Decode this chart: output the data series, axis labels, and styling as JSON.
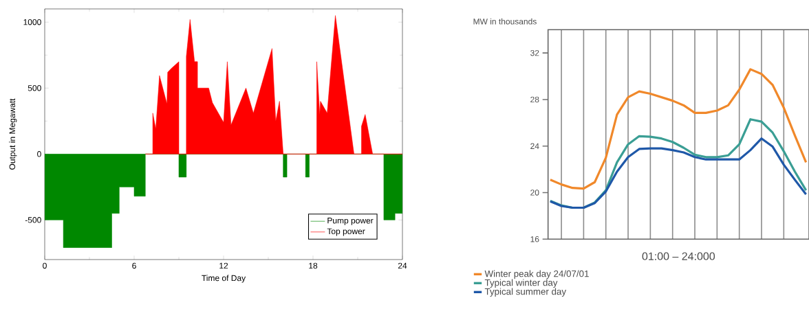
{
  "chart_data": [
    {
      "type": "area",
      "xlabel": "Time of Day",
      "ylabel": "Output in Megawatt",
      "xlim": [
        0,
        24
      ],
      "ylim": [
        -800,
        1100
      ],
      "xticks": [
        0,
        6,
        12,
        18,
        24
      ],
      "yticks": [
        -500,
        0,
        500,
        1000
      ],
      "legend": "bottom right",
      "series": [
        {
          "name": "Pump power",
          "color": "#008800",
          "x": [
            0,
            1.25,
            1.25,
            4.5,
            4.5,
            5,
            5,
            6,
            6,
            6.75,
            6.75,
            9,
            9,
            9.5,
            9.5,
            16,
            16,
            16.25,
            16.25,
            17.5,
            17.5,
            17.75,
            17.75,
            22.75,
            22.75,
            23.5,
            23.5,
            24
          ],
          "values": [
            -500,
            -500,
            -710,
            -710,
            -450,
            -450,
            -250,
            -250,
            -320,
            -320,
            0,
            0,
            -175,
            -175,
            0,
            0,
            -175,
            -175,
            0,
            0,
            -175,
            -175,
            0,
            0,
            -500,
            -500,
            -450,
            -450
          ]
        },
        {
          "name": "Top power",
          "color": "#ff0000",
          "x": [
            6.75,
            7.25,
            7.25,
            7.45,
            7.7,
            8.2,
            8.25,
            8.5,
            9,
            9,
            9.5,
            9.5,
            9.75,
            10.05,
            10.25,
            10.25,
            11,
            11.25,
            12,
            12.25,
            12.5,
            13.5,
            14,
            15.25,
            15.5,
            15.75,
            16,
            18.25,
            18.25,
            18.45,
            18.5,
            18.95,
            19.5,
            20.75,
            21.25,
            21.25,
            21.5,
            22,
            24
          ],
          "values": [
            0,
            0,
            310,
            190,
            595,
            380,
            620,
            650,
            700,
            0,
            0,
            740,
            1020,
            700,
            700,
            500,
            500,
            390,
            240,
            700,
            220,
            500,
            310,
            800,
            250,
            400,
            0,
            0,
            700,
            300,
            400,
            310,
            1050,
            0,
            0,
            210,
            300,
            0,
            0
          ]
        }
      ]
    },
    {
      "type": "line",
      "ylabel": "MW in thousands",
      "xlabel": "01:00 – 24:000",
      "ylim": [
        16,
        34
      ],
      "yticks": [
        16,
        20,
        24,
        28,
        32
      ],
      "grid": "x",
      "legend": "bottom",
      "tick_labels": "y",
      "categories": [
        null,
        null,
        null,
        null,
        null,
        null,
        null,
        null,
        null,
        null,
        null,
        null,
        null,
        null,
        null,
        null,
        null,
        null,
        null,
        null,
        null,
        null,
        null,
        null
      ],
      "series": [
        {
          "name": "Winter peak day 24/07/01",
          "color": "#f0882a",
          "values": [
            21.1,
            20.7,
            20.4,
            20.35,
            20.9,
            23.0,
            26.7,
            28.2,
            28.7,
            28.5,
            28.2,
            27.9,
            27.5,
            26.85,
            26.85,
            27.05,
            27.5,
            28.85,
            30.6,
            30.2,
            29.25,
            27.3,
            24.9,
            22.6
          ]
        },
        {
          "name": "Typical winter day",
          "color": "#3a9e94",
          "values": [
            19.3,
            18.9,
            18.7,
            18.7,
            19.15,
            20.2,
            22.6,
            24.15,
            24.85,
            24.8,
            24.65,
            24.35,
            23.85,
            23.25,
            23.05,
            23.05,
            23.2,
            24.15,
            26.3,
            26.1,
            25.15,
            23.55,
            21.8,
            20.2
          ]
        },
        {
          "name": "Typical summer day",
          "color": "#1f58a8",
          "values": [
            19.25,
            18.85,
            18.7,
            18.7,
            19.1,
            20.1,
            21.8,
            23.05,
            23.75,
            23.8,
            23.8,
            23.65,
            23.45,
            23.05,
            22.85,
            22.85,
            22.85,
            22.85,
            23.65,
            24.65,
            23.95,
            22.4,
            21.1,
            19.85
          ]
        }
      ]
    }
  ]
}
